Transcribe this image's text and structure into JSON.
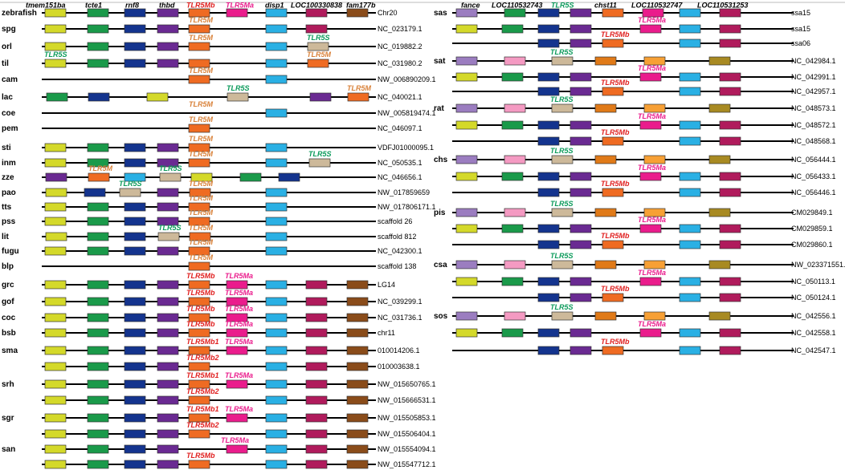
{
  "colors": {
    "tmem151ba": "#d4d92a",
    "tcte1": "#1a9a4a",
    "rnf8": "#14348e",
    "thbd": "#6a2a92",
    "tlr5": "#ef6b22",
    "tlr5ma": "#ea1c8c",
    "disp1": "#2ab0e4",
    "loc100330838": "#b01b5c",
    "fam177b": "#8a4c1a",
    "tlr5s": "#cdb99a",
    "fance": "#9b7dc0",
    "loc110532743": "#f49ac2",
    "chst11": "#e07a18",
    "loc110532747": "#f7a035",
    "loc110531253": "#a88a22",
    "label_tlr5m": "#d9823a",
    "label_tlr5mb": "#e02020",
    "label_tlr5ma": "#ea1c8c",
    "label_tlr5s": "#0a9a5a"
  },
  "left_headers": [
    "tmem151ba",
    "tcte1",
    "rnf8",
    "thbd",
    "TLR5Mb",
    "TLR5Ma",
    "disp1",
    "LOC100330838",
    "fam177b"
  ],
  "right_headers": [
    "fance",
    "LOC110532743",
    "TLR5S",
    "chst11",
    "LOC110532747",
    "LOC110531253"
  ],
  "left_rows": [
    {
      "species": "zebrafish",
      "accession": "Chr20",
      "genes": [
        "tmem151ba",
        "tcte1",
        "rnf8",
        "thbd",
        "tlr5",
        "tlr5ma",
        "disp1",
        "loc100330838",
        "fam177b"
      ]
    },
    {
      "species": "spg",
      "accession": "NC_023179.1",
      "label": "TLR5M"
    },
    {
      "species": "orl",
      "accession": "NC_019882.2",
      "label": "TLR5M",
      "label2": "TLR5S"
    },
    {
      "species": "til",
      "accession": "NC_031980.2",
      "label": "TLR5S",
      "label2": "TLR5M"
    },
    {
      "species": "cam",
      "accession": "NW_006890209.1",
      "label": "TLR5M"
    },
    {
      "species": "lac",
      "accession": "NC_040021.1",
      "label": "TLR5S",
      "label2": "TLR5M"
    },
    {
      "species": "coe",
      "accession": "NW_005819474.1",
      "label": "TLR5M"
    },
    {
      "species": "pem",
      "accession": "NC_046097.1",
      "label": "TLR5M"
    },
    {
      "species": "sti",
      "accession": "VDFJ01000095.1",
      "label": "TLR5M"
    },
    {
      "species": "inm",
      "accession": "NC_050535.1",
      "label": "TLR5M",
      "label2": "TLR5S"
    },
    {
      "species": "zze",
      "accession": "NC_046656.1",
      "label": "TLR5M",
      "label2": "TLR5S"
    },
    {
      "species": "pao",
      "accession": "NW_017859659",
      "label": "TLR5S",
      "label2": "TLR5M"
    },
    {
      "species": "tts",
      "accession": "NW_017806171.1",
      "label": "TLR5M"
    },
    {
      "species": "pss",
      "accession": "scaffold 26",
      "label": "TLR5M"
    },
    {
      "species": "lit",
      "accession": "scaffold 812",
      "label": "TLR5S",
      "label2": "TLR5M"
    },
    {
      "species": "fugu",
      "accession": "NC_042300.1",
      "label": "TLR5M"
    },
    {
      "species": "blp",
      "accession": "scaffold 138",
      "label": "TLR5M"
    },
    {
      "species": "grc",
      "accession": "LG14",
      "label": "TLR5Mb",
      "label2": "TLR5Ma"
    },
    {
      "species": "gof",
      "accession": "NC_039299.1",
      "label": "TLR5Mb",
      "label2": "TLR5Ma"
    },
    {
      "species": "coc",
      "accession": "NC_031736.1",
      "label": "TLR5Mb",
      "label2": "TLR5Ma"
    },
    {
      "species": "bsb",
      "accession": "chr11",
      "label": "TLR5Mb",
      "label2": "TLR5Ma"
    },
    {
      "species": "sma",
      "accession": "010014206.1",
      "label": "TLR5Mb1",
      "label2": "TLR5Ma"
    },
    {
      "species": "",
      "accession": "010003638.1",
      "label": "TLR5Mb2"
    },
    {
      "species": "srh",
      "accession": "NW_015650765.1",
      "label": "TLR5Mb1",
      "label2": "TLR5Ma"
    },
    {
      "species": "",
      "accession": "NW_015666531.1",
      "label": "TLR5Mb2"
    },
    {
      "species": "sgr",
      "accession": "NW_015505853.1",
      "label": "TLR5Mb1",
      "label2": "TLR5Ma"
    },
    {
      "species": "",
      "accession": "NW_015506404.1",
      "label": "TLR5Mb2"
    },
    {
      "species": "san",
      "accession": "NW_015554094.1",
      "label": "TLR5Ma"
    },
    {
      "species": "",
      "accession": "NW_015547712.1",
      "label": "TLR5Mb"
    }
  ],
  "right_rows": [
    {
      "species": "sas",
      "accession": "ssa15"
    },
    {
      "species": "",
      "accession": "ssa15",
      "label": "TLR5Ma"
    },
    {
      "species": "",
      "accession": "ssa06",
      "label": "TLR5Mb"
    },
    {
      "species": "sat",
      "accession": "NC_042984.1",
      "label": "TLR5S"
    },
    {
      "species": "",
      "accession": "NC_042991.1",
      "label": "TLR5Ma"
    },
    {
      "species": "",
      "accession": "NC_042957.1",
      "label": "TLR5Mb"
    },
    {
      "species": "rat",
      "accession": "NC_048573.1",
      "label": "TLR5S"
    },
    {
      "species": "",
      "accession": "NC_048572.1",
      "label": "TLR5Ma"
    },
    {
      "species": "",
      "accession": "NC_048568.1",
      "label": "TLR5Mb"
    },
    {
      "species": "chs",
      "accession": "NC_056444.1",
      "label": "TLR5S"
    },
    {
      "species": "",
      "accession": "NC_056433.1",
      "label": "TLR5Ma"
    },
    {
      "species": "",
      "accession": "NC_056446.1",
      "label": "TLR5Mb"
    },
    {
      "species": "pis",
      "accession": "CM029849.1",
      "label": "TLR5S"
    },
    {
      "species": "",
      "accession": "CM029859.1",
      "label": "TLR5Ma"
    },
    {
      "species": "",
      "accession": "CM029860.1",
      "label": "TLR5Mb"
    },
    {
      "species": "csa",
      "accession": "NW_023371551.1",
      "label": "TLR5S"
    },
    {
      "species": "",
      "accession": "NC_050113.1",
      "label": "TLR5Ma"
    },
    {
      "species": "",
      "accession": "NC_050124.1",
      "label": "TLR5Mb"
    },
    {
      "species": "sos",
      "accession": "NC_042556.1",
      "label": "TLR5S"
    },
    {
      "species": "",
      "accession": "NC_042558.1",
      "label": "TLR5Ma"
    },
    {
      "species": "",
      "accession": "NC_042547.1",
      "label": "TLR5Mb"
    }
  ]
}
